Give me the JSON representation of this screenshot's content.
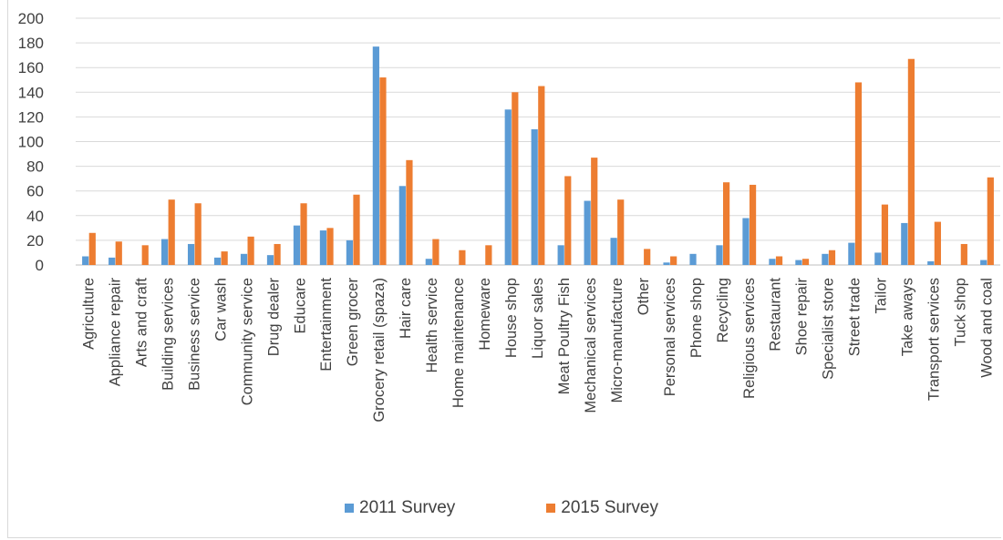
{
  "chart_data": {
    "type": "bar",
    "title": "",
    "xlabel": "",
    "ylabel": "",
    "ylim": [
      0,
      200
    ],
    "yticks": [
      0,
      20,
      40,
      60,
      80,
      100,
      120,
      140,
      160,
      180,
      200
    ],
    "grid": true,
    "legend_position": "bottom",
    "categories": [
      "Agriculture",
      "Appliance repair",
      "Arts and craft",
      "Building services",
      "Business service",
      "Car wash",
      "Community service",
      "Drug dealer",
      "Educare",
      "Entertainment",
      "Green grocer",
      "Grocery retail (spaza)",
      "Hair care",
      "Health service",
      "Home maintenance",
      "Homeware",
      "House shop",
      "Liquor sales",
      "Meat Poultry Fish",
      "Mechanical services",
      "Micro-manufacture",
      "Other",
      "Personal services",
      "Phone shop",
      "Recycling",
      "Religious services",
      "Restaurant",
      "Shoe repair",
      "Specialist store",
      "Street trade",
      "Tailor",
      "Take aways",
      "Transport services",
      "Tuck shop",
      "Wood and coal"
    ],
    "series": [
      {
        "name": "2011 Survey",
        "color": "#5b9bd5",
        "values": [
          7,
          6,
          0,
          21,
          17,
          6,
          9,
          8,
          32,
          28,
          20,
          177,
          64,
          5,
          0,
          0,
          126,
          110,
          16,
          52,
          22,
          0,
          2,
          9,
          16,
          38,
          5,
          4,
          9,
          18,
          10,
          34,
          3,
          0,
          4
        ]
      },
      {
        "name": "2015 Survey",
        "color": "#ed7d31",
        "values": [
          26,
          19,
          16,
          53,
          50,
          11,
          23,
          17,
          50,
          30,
          57,
          152,
          85,
          21,
          12,
          16,
          140,
          145,
          72,
          87,
          53,
          13,
          7,
          0,
          67,
          65,
          7,
          5,
          12,
          148,
          49,
          167,
          35,
          17,
          71
        ]
      }
    ]
  }
}
